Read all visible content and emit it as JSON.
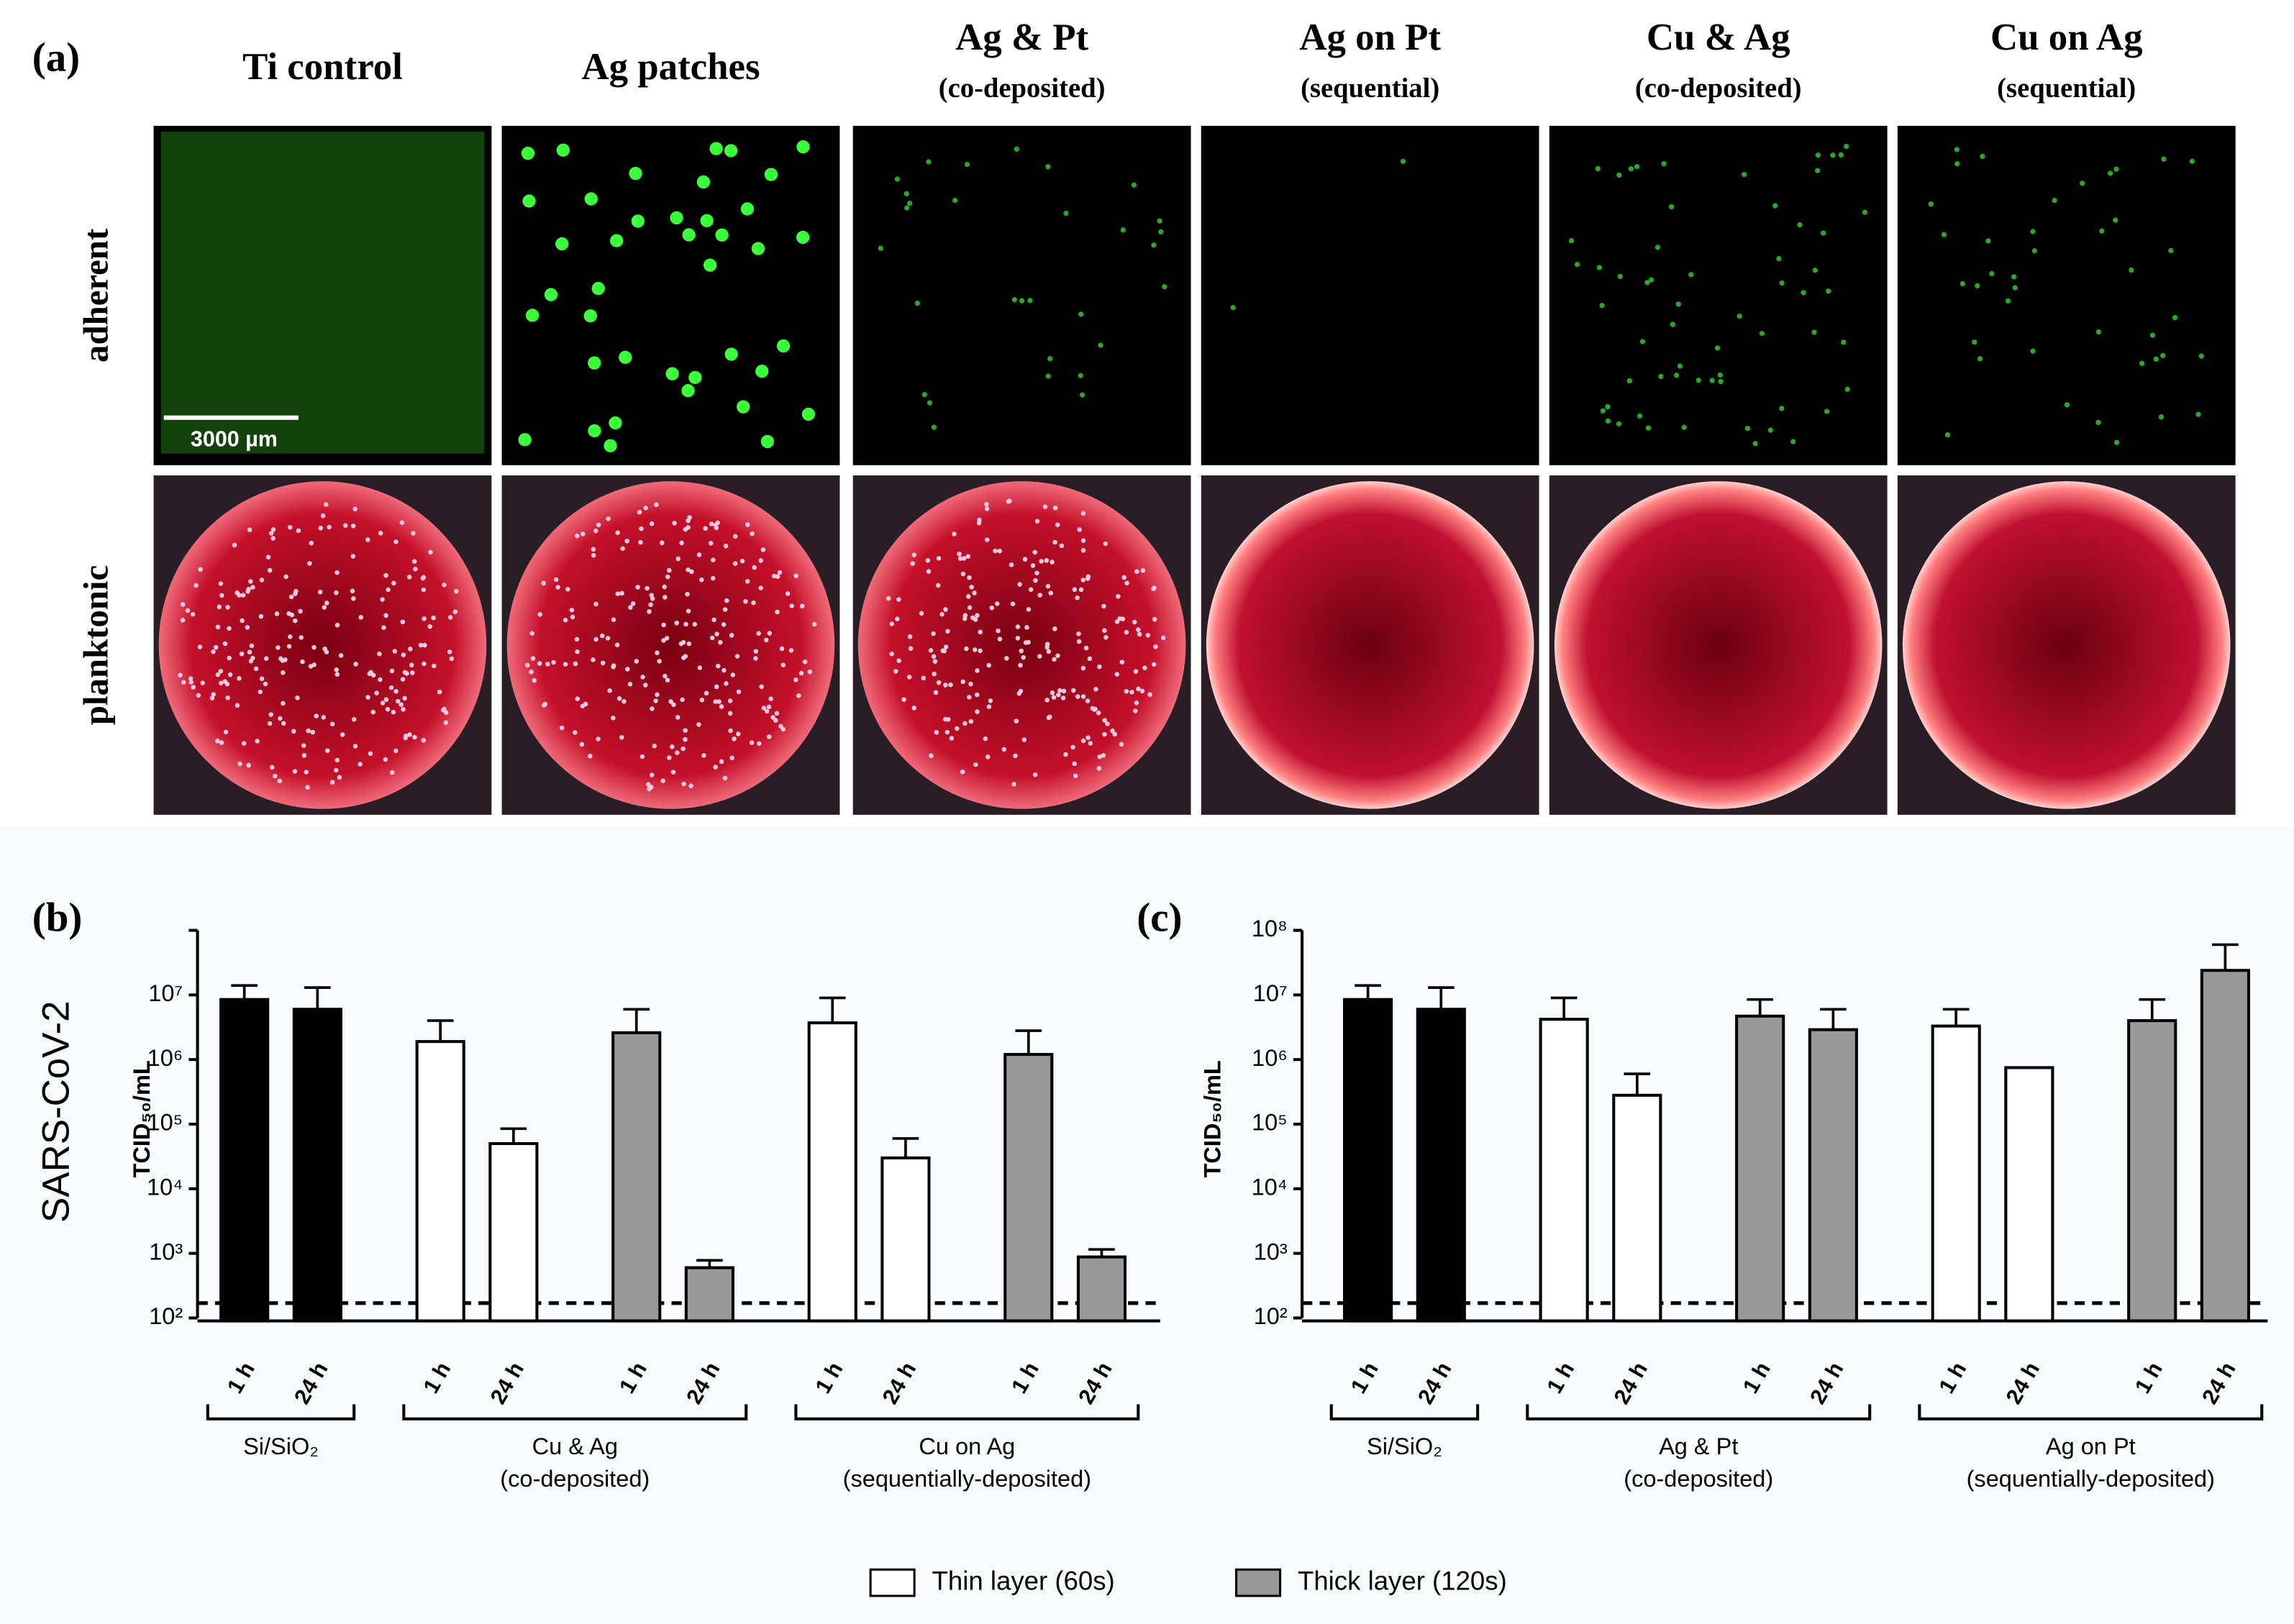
{
  "panel_a": {
    "label": "(a)",
    "columns": [
      {
        "title": "Ti control"
      },
      {
        "title": "Ag patches"
      },
      {
        "title": "Ag & Pt",
        "subtitle": "(co-deposited)"
      },
      {
        "title": "Ag on Pt",
        "subtitle": "(sequential)"
      },
      {
        "title": "Cu & Ag",
        "subtitle": "(co-deposited)"
      },
      {
        "title": "Cu on Ag",
        "subtitle": "(sequential)"
      }
    ],
    "rows": [
      "adherent",
      "planktonic"
    ],
    "scale_bar": "3000 µm"
  },
  "legend": [
    {
      "label": "Thin layer (60s)",
      "color": "#ffffff"
    },
    {
      "label": "Thick layer (120s)",
      "color": "#999999"
    }
  ],
  "chart_data": [
    {
      "type": "bar",
      "panel": "(b)",
      "title": "SARS-CoV-2",
      "y_label": "TCID₅₀/mL",
      "log_scale": true,
      "ylim": [
        100,
        100000000
      ],
      "yticks": [
        {
          "value": 100,
          "label": "10²"
        },
        {
          "value": 1000,
          "label": "10³"
        },
        {
          "value": 10000,
          "label": "10⁴"
        },
        {
          "value": 100000,
          "label": "10⁵"
        },
        {
          "value": 1000000,
          "label": "10⁶"
        },
        {
          "value": 10000000,
          "label": "10⁷"
        }
      ],
      "reference_line": 170,
      "groups": [
        {
          "label": "Si/SiO₂",
          "categories": [
            "1 h",
            "24 h"
          ]
        },
        {
          "label": "Cu & Ag",
          "note": "(co-deposited)",
          "categories": [
            "1 h",
            "24 h",
            "1 h",
            "24 h"
          ]
        },
        {
          "label": "Cu on Ag",
          "note": "(sequentially-deposited)",
          "categories": [
            "1 h",
            "24 h",
            "1 h",
            "24 h"
          ]
        }
      ],
      "series": [
        {
          "color": "#000000",
          "values": [
            8500000,
            6000000,
            null,
            null,
            null,
            null,
            null,
            null,
            null,
            null
          ],
          "errors": [
            5500000,
            7000000,
            null,
            null,
            null,
            null,
            null,
            null,
            null,
            null
          ]
        },
        {
          "color": "#ffffff",
          "values": [
            null,
            null,
            1900000,
            50000,
            null,
            null,
            3700000,
            30000,
            null,
            null
          ],
          "errors": [
            null,
            null,
            2100000,
            35000,
            null,
            null,
            5300000,
            30000,
            null,
            null
          ]
        },
        {
          "color": "#999999",
          "values": [
            null,
            null,
            null,
            null,
            2600000,
            600,
            null,
            null,
            1200000,
            880
          ],
          "errors": [
            null,
            null,
            null,
            null,
            3400000,
            180,
            null,
            null,
            1600000,
            270
          ]
        }
      ]
    },
    {
      "type": "bar",
      "panel": "(c)",
      "y_label": "TCID₅₀/mL",
      "log_scale": true,
      "ylim": [
        100,
        100000000
      ],
      "yticks": [
        {
          "value": 100,
          "label": "10²"
        },
        {
          "value": 1000,
          "label": "10³"
        },
        {
          "value": 10000,
          "label": "10⁴"
        },
        {
          "value": 100000,
          "label": "10⁵"
        },
        {
          "value": 1000000,
          "label": "10⁶"
        },
        {
          "value": 10000000,
          "label": "10⁷"
        },
        {
          "value": 100000000,
          "label": "10⁸"
        }
      ],
      "reference_line": 170,
      "groups": [
        {
          "label": "Si/SiO₂",
          "categories": [
            "1 h",
            "24 h"
          ]
        },
        {
          "label": "Ag & Pt",
          "note": "(co-deposited)",
          "categories": [
            "1 h",
            "24 h",
            "1 h",
            "24 h"
          ]
        },
        {
          "label": "Ag on Pt",
          "note": "(sequentially-deposited)",
          "categories": [
            "1 h",
            "24 h",
            "1 h",
            "24 h"
          ]
        }
      ],
      "series": [
        {
          "color": "#000000",
          "values": [
            8500000,
            6000000,
            null,
            null,
            null,
            null,
            null,
            null,
            null,
            null
          ],
          "errors": [
            5500000,
            7000000,
            null,
            null,
            null,
            null,
            null,
            null,
            null,
            null
          ]
        },
        {
          "color": "#ffffff",
          "values": [
            null,
            null,
            4200000,
            280000,
            null,
            null,
            3300000,
            750000,
            null,
            null
          ],
          "errors": [
            null,
            null,
            4800000,
            320000,
            null,
            null,
            2700000,
            null,
            null,
            null
          ]
        },
        {
          "color": "#999999",
          "values": [
            null,
            null,
            null,
            null,
            4700000,
            2900000,
            null,
            null,
            4000000,
            24000000
          ],
          "errors": [
            null,
            null,
            null,
            null,
            3800000,
            3100000,
            null,
            null,
            4500000,
            36000000
          ]
        }
      ]
    }
  ]
}
